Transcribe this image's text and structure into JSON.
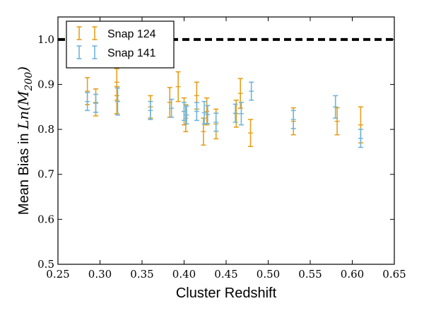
{
  "chart_data": {
    "type": "scatter",
    "title": "",
    "xlabel": "Cluster Redshift",
    "ylabel_prefix": "Mean Bias in ",
    "ylabel_math": "Ln(M",
    "ylabel_sub": "200",
    "ylabel_close": ")",
    "xlim": [
      0.25,
      0.65
    ],
    "ylim": [
      0.5,
      1.05
    ],
    "xticks": [
      "0.25",
      "0.30",
      "0.35",
      "0.40",
      "0.45",
      "0.50",
      "0.55",
      "0.60",
      "0.65"
    ],
    "xtick_values": [
      0.25,
      0.3,
      0.35,
      0.4,
      0.45,
      0.5,
      0.55,
      0.6,
      0.65
    ],
    "yticks": [
      "0.5",
      "0.6",
      "0.7",
      "0.8",
      "0.9",
      "1.0"
    ],
    "ytick_values": [
      0.5,
      0.6,
      0.7,
      0.8,
      0.9,
      1.0
    ],
    "grid": false,
    "legend_position": "top-left",
    "reference_line": {
      "y": 1.0,
      "style": "dashed",
      "color": "#000000"
    },
    "series": [
      {
        "name": "Snap 124",
        "color": "#E69F1A",
        "points": [
          {
            "x": 0.285,
            "y": 0.885,
            "err": 0.03
          },
          {
            "x": 0.295,
            "y": 0.86,
            "err": 0.03
          },
          {
            "x": 0.32,
            "y": 0.905,
            "err": 0.03
          },
          {
            "x": 0.32,
            "y": 0.865,
            "err": 0.03
          },
          {
            "x": 0.36,
            "y": 0.85,
            "err": 0.025
          },
          {
            "x": 0.383,
            "y": 0.86,
            "err": 0.033
          },
          {
            "x": 0.393,
            "y": 0.895,
            "err": 0.033
          },
          {
            "x": 0.4,
            "y": 0.84,
            "err": 0.03
          },
          {
            "x": 0.402,
            "y": 0.825,
            "err": 0.03
          },
          {
            "x": 0.415,
            "y": 0.875,
            "err": 0.03
          },
          {
            "x": 0.423,
            "y": 0.795,
            "err": 0.03
          },
          {
            "x": 0.427,
            "y": 0.84,
            "err": 0.03
          },
          {
            "x": 0.438,
            "y": 0.812,
            "err": 0.033
          },
          {
            "x": 0.462,
            "y": 0.835,
            "err": 0.03
          },
          {
            "x": 0.467,
            "y": 0.88,
            "err": 0.033
          },
          {
            "x": 0.479,
            "y": 0.792,
            "err": 0.03
          },
          {
            "x": 0.53,
            "y": 0.818,
            "err": 0.03
          },
          {
            "x": 0.582,
            "y": 0.818,
            "err": 0.03
          },
          {
            "x": 0.61,
            "y": 0.81,
            "err": 0.04
          }
        ]
      },
      {
        "name": "Snap 141",
        "color": "#6DB6DB",
        "points": [
          {
            "x": 0.285,
            "y": 0.862,
            "err": 0.02
          },
          {
            "x": 0.295,
            "y": 0.858,
            "err": 0.02
          },
          {
            "x": 0.321,
            "y": 0.862,
            "err": 0.03
          },
          {
            "x": 0.36,
            "y": 0.842,
            "err": 0.02
          },
          {
            "x": 0.385,
            "y": 0.847,
            "err": 0.02
          },
          {
            "x": 0.4,
            "y": 0.84,
            "err": 0.02
          },
          {
            "x": 0.403,
            "y": 0.832,
            "err": 0.02
          },
          {
            "x": 0.415,
            "y": 0.84,
            "err": 0.02
          },
          {
            "x": 0.424,
            "y": 0.837,
            "err": 0.025
          },
          {
            "x": 0.428,
            "y": 0.833,
            "err": 0.02
          },
          {
            "x": 0.438,
            "y": 0.816,
            "err": 0.02
          },
          {
            "x": 0.461,
            "y": 0.836,
            "err": 0.02
          },
          {
            "x": 0.468,
            "y": 0.835,
            "err": 0.025
          },
          {
            "x": 0.48,
            "y": 0.885,
            "err": 0.02
          },
          {
            "x": 0.53,
            "y": 0.822,
            "err": 0.02
          },
          {
            "x": 0.58,
            "y": 0.85,
            "err": 0.025
          },
          {
            "x": 0.61,
            "y": 0.78,
            "err": 0.02
          }
        ]
      }
    ]
  }
}
